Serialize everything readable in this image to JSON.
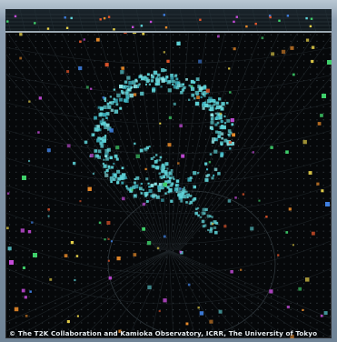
{
  "image": {
    "subject": "event-display",
    "colors": {
      "background": "#06080a",
      "grid": "#2a2f33",
      "ring": "#5fd3d8",
      "hit_red": "#e0552b",
      "hit_yellow": "#e8d24a",
      "hit_green": "#3fcf6a",
      "hit_blue": "#3f7fe0"
    }
  },
  "credit": {
    "text": "© The T2K Collaboration and Kamioka Observatory, ICRR, The University of Tokyo"
  }
}
